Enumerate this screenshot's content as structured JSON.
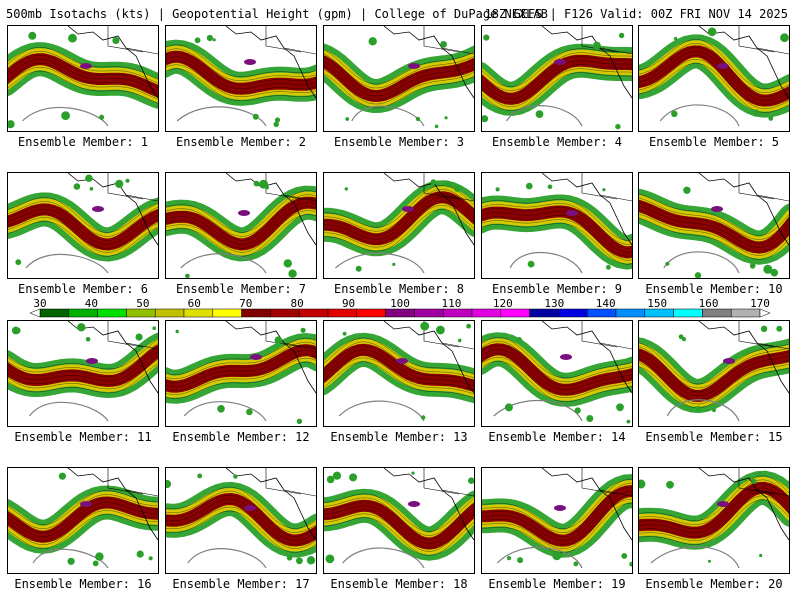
{
  "header": {
    "left_text": "500mb Isotachs (kts) | Geopotential Height (gpm) | College of DuPage NEXLAB",
    "right_text": "18Z GEFS | F126 Valid: 00Z FRI NOV 14 2025"
  },
  "members": [
    {
      "label": "Ensemble Member: 1"
    },
    {
      "label": "Ensemble Member: 2"
    },
    {
      "label": "Ensemble Member: 3"
    },
    {
      "label": "Ensemble Member: 4"
    },
    {
      "label": "Ensemble Member: 5"
    },
    {
      "label": "Ensemble Member: 6"
    },
    {
      "label": "Ensemble Member: 7"
    },
    {
      "label": "Ensemble Member: 8"
    },
    {
      "label": "Ensemble Member: 9"
    },
    {
      "label": "Ensemble Member: 10"
    },
    {
      "label": "Ensemble Member: 11"
    },
    {
      "label": "Ensemble Member: 12"
    },
    {
      "label": "Ensemble Member: 13"
    },
    {
      "label": "Ensemble Member: 14"
    },
    {
      "label": "Ensemble Member: 15"
    },
    {
      "label": "Ensemble Member: 16"
    },
    {
      "label": "Ensemble Member: 17"
    },
    {
      "label": "Ensemble Member: 18"
    },
    {
      "label": "Ensemble Member: 19"
    },
    {
      "label": "Ensemble Member: 20"
    }
  ],
  "colorbar": {
    "tick_labels": [
      "30",
      "40",
      "50",
      "60",
      "70",
      "80",
      "90",
      "100",
      "110",
      "120",
      "130",
      "140",
      "150",
      "160",
      "170"
    ],
    "colors": [
      "#006400",
      "#00b000",
      "#00e000",
      "#90c000",
      "#c0c000",
      "#e0e000",
      "#ffff00",
      "#800000",
      "#a00000",
      "#c00000",
      "#e00000",
      "#ff0000",
      "#800080",
      "#a000a0",
      "#c000c0",
      "#e000e0",
      "#ff00ff",
      "#0000a0",
      "#0000e0",
      "#0050ff",
      "#0090ff",
      "#00c0ff",
      "#00ffff",
      "#808080",
      "#b0b0b0"
    ]
  },
  "legend_colors": {
    "jet_low": "#2aa02a",
    "jet_mid": "#d8c800",
    "jet_core": "#8b0000",
    "jet_max": "#7a1080",
    "contour": "#808080",
    "coast": "#000000"
  }
}
